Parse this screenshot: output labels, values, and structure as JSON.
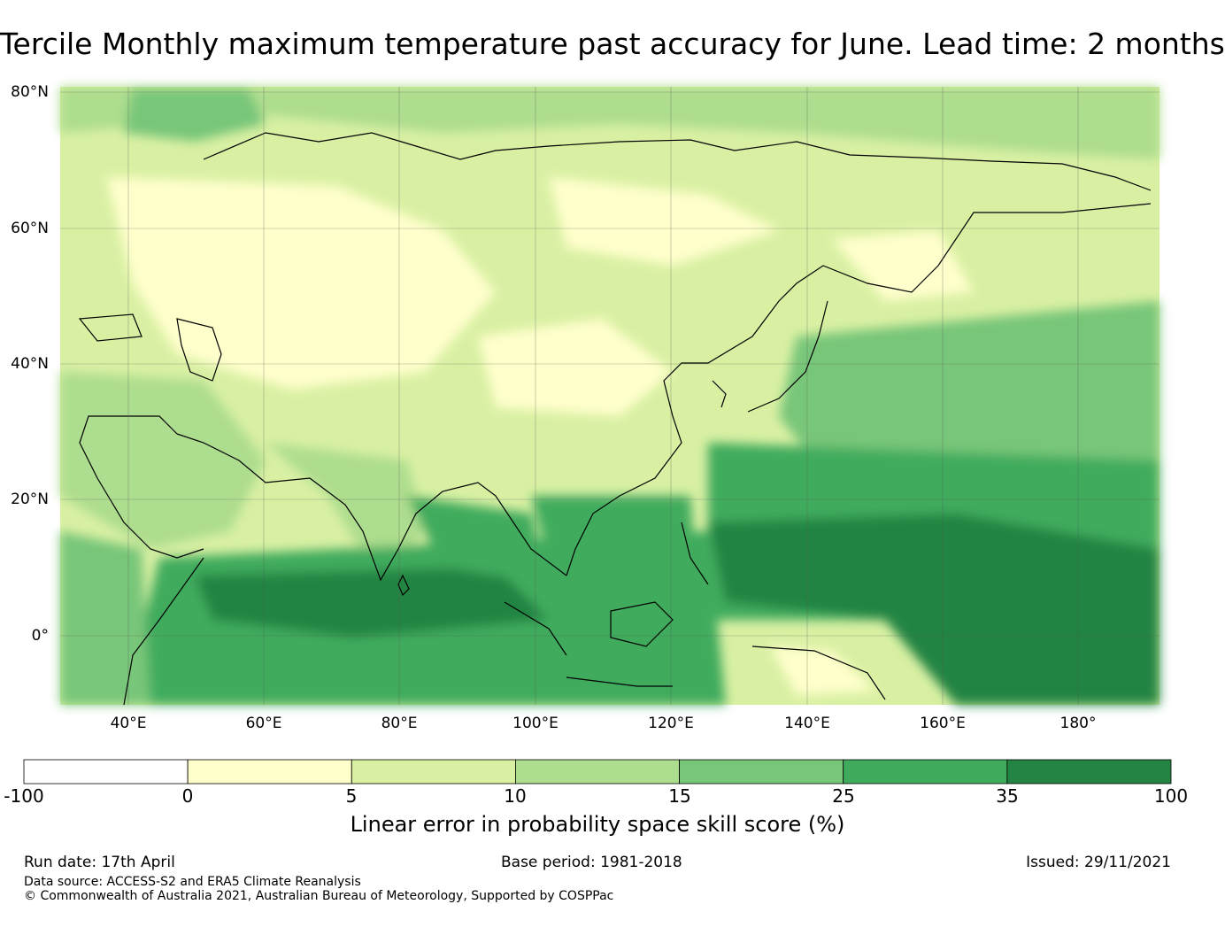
{
  "title": "Tercile Monthly maximum temperature past accuracy for June. Lead time: 2 months",
  "map": {
    "lat_labels": [
      "80°N",
      "60°N",
      "40°N",
      "20°N",
      "0°"
    ],
    "lon_labels": [
      "40°E",
      "60°E",
      "80°E",
      "100°E",
      "120°E",
      "140°E",
      "160°E",
      "180°"
    ],
    "extent": {
      "lon_min": 30,
      "lon_max": 192,
      "lat_min": -10,
      "lat_max": 81
    }
  },
  "colorbar": {
    "ticks": [
      "-100",
      "0",
      "5",
      "10",
      "15",
      "25",
      "35",
      "100"
    ],
    "colors": [
      "#ffffff",
      "#ffffcc",
      "#d9f0a3",
      "#addd8e",
      "#78c679",
      "#41ab5d",
      "#238443"
    ],
    "label": "Linear error in probability space skill score (%)"
  },
  "footer": {
    "run_date": "Run date: 17th April",
    "base_period": "Base period: 1981-2018",
    "issued": "Issued: 29/11/2021",
    "data_source": "Data source: ACCESS-S2 and ERA5 Climate Reanalysis",
    "copyright": "© Commonwealth of Australia 2021, Australian Bureau of Meteorology, Supported by COSPPac"
  }
}
